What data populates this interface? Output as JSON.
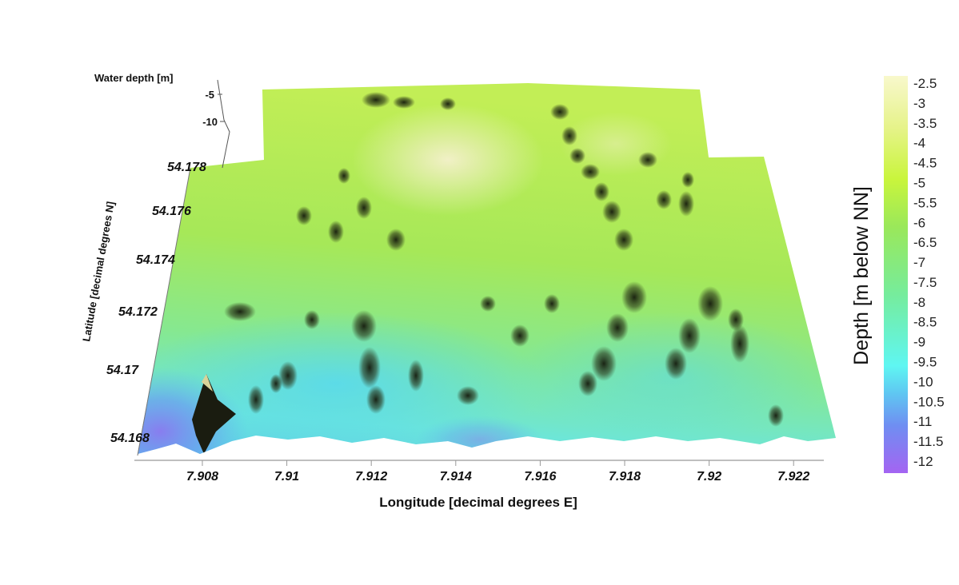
{
  "chart_data": {
    "type": "heatmap",
    "subtype": "3d-surface",
    "title": "",
    "xlabel": "Longitude [decimal degrees E]",
    "ylabel": "Latitude [decimal degrees N]",
    "zlabel": "Water depth [m]",
    "x_ticks": [
      "7.908",
      "7.91",
      "7.912",
      "7.914",
      "7.916",
      "7.918",
      "7.92",
      "7.922"
    ],
    "y_ticks": [
      "54.168",
      "54.17",
      "54.172",
      "54.174",
      "54.176",
      "54.178"
    ],
    "z_ticks": [
      "-5",
      "-10"
    ],
    "xlim": [
      7.9065,
      7.923
    ],
    "ylim": [
      54.1675,
      54.178
    ],
    "zlim": [
      -12,
      -2.5
    ],
    "colorbar": {
      "label": "Depth [m below NN]",
      "ticks": [
        "-2.5",
        "-3",
        "-3.5",
        "-4",
        "-4.5",
        "-5",
        "-5.5",
        "-6",
        "-6.5",
        "-7",
        "-7.5",
        "-8",
        "-8.5",
        "-9",
        "-9.5",
        "-10",
        "-10.5",
        "-11",
        "-11.5",
        "-12"
      ],
      "range": [
        -12,
        -2.5
      ],
      "colors": [
        "#a464f2",
        "#6f8ef2",
        "#5fc6f2",
        "#5ff6f2",
        "#76ec9c",
        "#9ae85a",
        "#c9f53c",
        "#e6f38a",
        "#f8f8cc"
      ]
    },
    "grid": false
  }
}
